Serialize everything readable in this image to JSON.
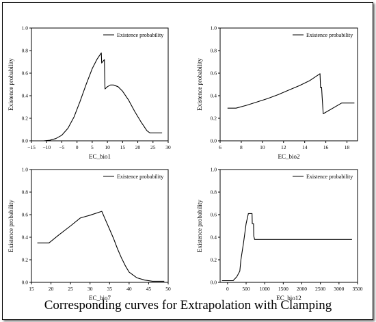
{
  "caption": "Corresponding curves for Extrapolation with Clamping",
  "chart_data": [
    {
      "type": "line",
      "xlabel": "EC_bio1",
      "ylabel": "Existence probability",
      "legend": "Existence probability",
      "legend_position": "top-right",
      "grid": false,
      "xlim": [
        -15,
        30
      ],
      "ylim": [
        0,
        1.0
      ],
      "xticks": [
        -15,
        -10,
        -5,
        0,
        5,
        10,
        15,
        20,
        25,
        30
      ],
      "yticks": [
        0.0,
        0.2,
        0.4,
        0.6,
        0.8,
        1.0
      ],
      "tick_labels_x": [
        "−15",
        "−10",
        "−5",
        "0",
        "5",
        "10",
        "15",
        "20",
        "25",
        "30"
      ],
      "tick_labels_y": [
        "0.0",
        "0.2",
        "0.4",
        "0.6",
        "0.8",
        "1.0"
      ],
      "series": [
        {
          "name": "Existence probability",
          "x": [
            -11,
            -9,
            -7,
            -5,
            -3,
            -1,
            1,
            3,
            5,
            6.5,
            7.5,
            8,
            8.1,
            9,
            9.1,
            9.2,
            10,
            11,
            12,
            13.5,
            15,
            17,
            19,
            21,
            23,
            24,
            28
          ],
          "y": [
            0.0,
            0.005,
            0.02,
            0.05,
            0.11,
            0.21,
            0.35,
            0.5,
            0.64,
            0.72,
            0.76,
            0.78,
            0.69,
            0.72,
            0.6,
            0.46,
            0.48,
            0.495,
            0.495,
            0.48,
            0.44,
            0.36,
            0.26,
            0.17,
            0.09,
            0.07,
            0.07
          ]
        }
      ]
    },
    {
      "type": "line",
      "xlabel": "EC_bio2",
      "ylabel": "Existence probability",
      "legend": "Existence probability",
      "legend_position": "top-right",
      "grid": false,
      "xlim": [
        6,
        19
      ],
      "ylim": [
        0,
        1.0
      ],
      "xticks": [
        6,
        8,
        10,
        12,
        14,
        16,
        18
      ],
      "yticks": [
        0.0,
        0.2,
        0.4,
        0.6,
        0.8,
        1.0
      ],
      "tick_labels_x": [
        "6",
        "8",
        "10",
        "12",
        "14",
        "16",
        "18"
      ],
      "tick_labels_y": [
        "0.0",
        "0.2",
        "0.4",
        "0.6",
        "0.8",
        "1.0"
      ],
      "series": [
        {
          "name": "Existence probability",
          "x": [
            6.7,
            7.5,
            8.5,
            9.5,
            10.5,
            11.5,
            12.5,
            13.5,
            14.5,
            15.45,
            15.5,
            15.6,
            15.65,
            15.75,
            17.5,
            18.7
          ],
          "y": [
            0.29,
            0.29,
            0.315,
            0.345,
            0.375,
            0.41,
            0.45,
            0.49,
            0.535,
            0.595,
            0.47,
            0.475,
            0.39,
            0.24,
            0.335,
            0.335
          ]
        }
      ]
    },
    {
      "type": "line",
      "xlabel": "EC_bio7",
      "ylabel": "Existence probability",
      "legend": "Existence probability",
      "legend_position": "top-right",
      "grid": false,
      "xlim": [
        15,
        50
      ],
      "ylim": [
        0,
        1.0
      ],
      "xticks": [
        15,
        20,
        25,
        30,
        35,
        40,
        45,
        50
      ],
      "yticks": [
        0.0,
        0.2,
        0.4,
        0.6,
        0.8,
        1.0
      ],
      "tick_labels_x": [
        "15",
        "20",
        "25",
        "30",
        "35",
        "40",
        "45",
        "50"
      ],
      "tick_labels_y": [
        "0.0",
        "0.2",
        "0.4",
        "0.6",
        "0.8",
        "1.0"
      ],
      "series": [
        {
          "name": "Existence probability",
          "x": [
            16.5,
            19.5,
            22,
            25,
            27.5,
            30,
            33,
            34,
            35,
            36,
            37,
            38,
            39,
            40,
            42,
            44,
            46,
            49
          ],
          "y": [
            0.35,
            0.35,
            0.42,
            0.5,
            0.57,
            0.595,
            0.63,
            0.55,
            0.47,
            0.39,
            0.3,
            0.22,
            0.15,
            0.09,
            0.04,
            0.02,
            0.01,
            0.01
          ]
        }
      ]
    },
    {
      "type": "line",
      "xlabel": "EC_bio12",
      "ylabel": "Existence probability",
      "legend": "Existence probability",
      "legend_position": "top-right",
      "grid": false,
      "xlim": [
        -200,
        3500
      ],
      "ylim": [
        0,
        1.0
      ],
      "xticks": [
        0,
        500,
        1000,
        1500,
        2000,
        2500,
        3000,
        3500
      ],
      "yticks": [
        0.0,
        0.2,
        0.4,
        0.6,
        0.8,
        1.0
      ],
      "tick_labels_x": [
        "0",
        "500",
        "1000",
        "1500",
        "2000",
        "2500",
        "3000",
        "3500"
      ],
      "tick_labels_y": [
        "0.0",
        "0.2",
        "0.4",
        "0.6",
        "0.8",
        "1.0"
      ],
      "series": [
        {
          "name": "Existence probability",
          "x": [
            -150,
            150,
            250,
            330,
            360,
            430,
            500,
            560,
            630,
            660,
            665,
            700,
            705,
            730,
            3350
          ],
          "y": [
            0.015,
            0.015,
            0.05,
            0.1,
            0.2,
            0.35,
            0.52,
            0.61,
            0.61,
            0.61,
            0.52,
            0.52,
            0.41,
            0.38,
            0.38
          ]
        }
      ]
    }
  ]
}
